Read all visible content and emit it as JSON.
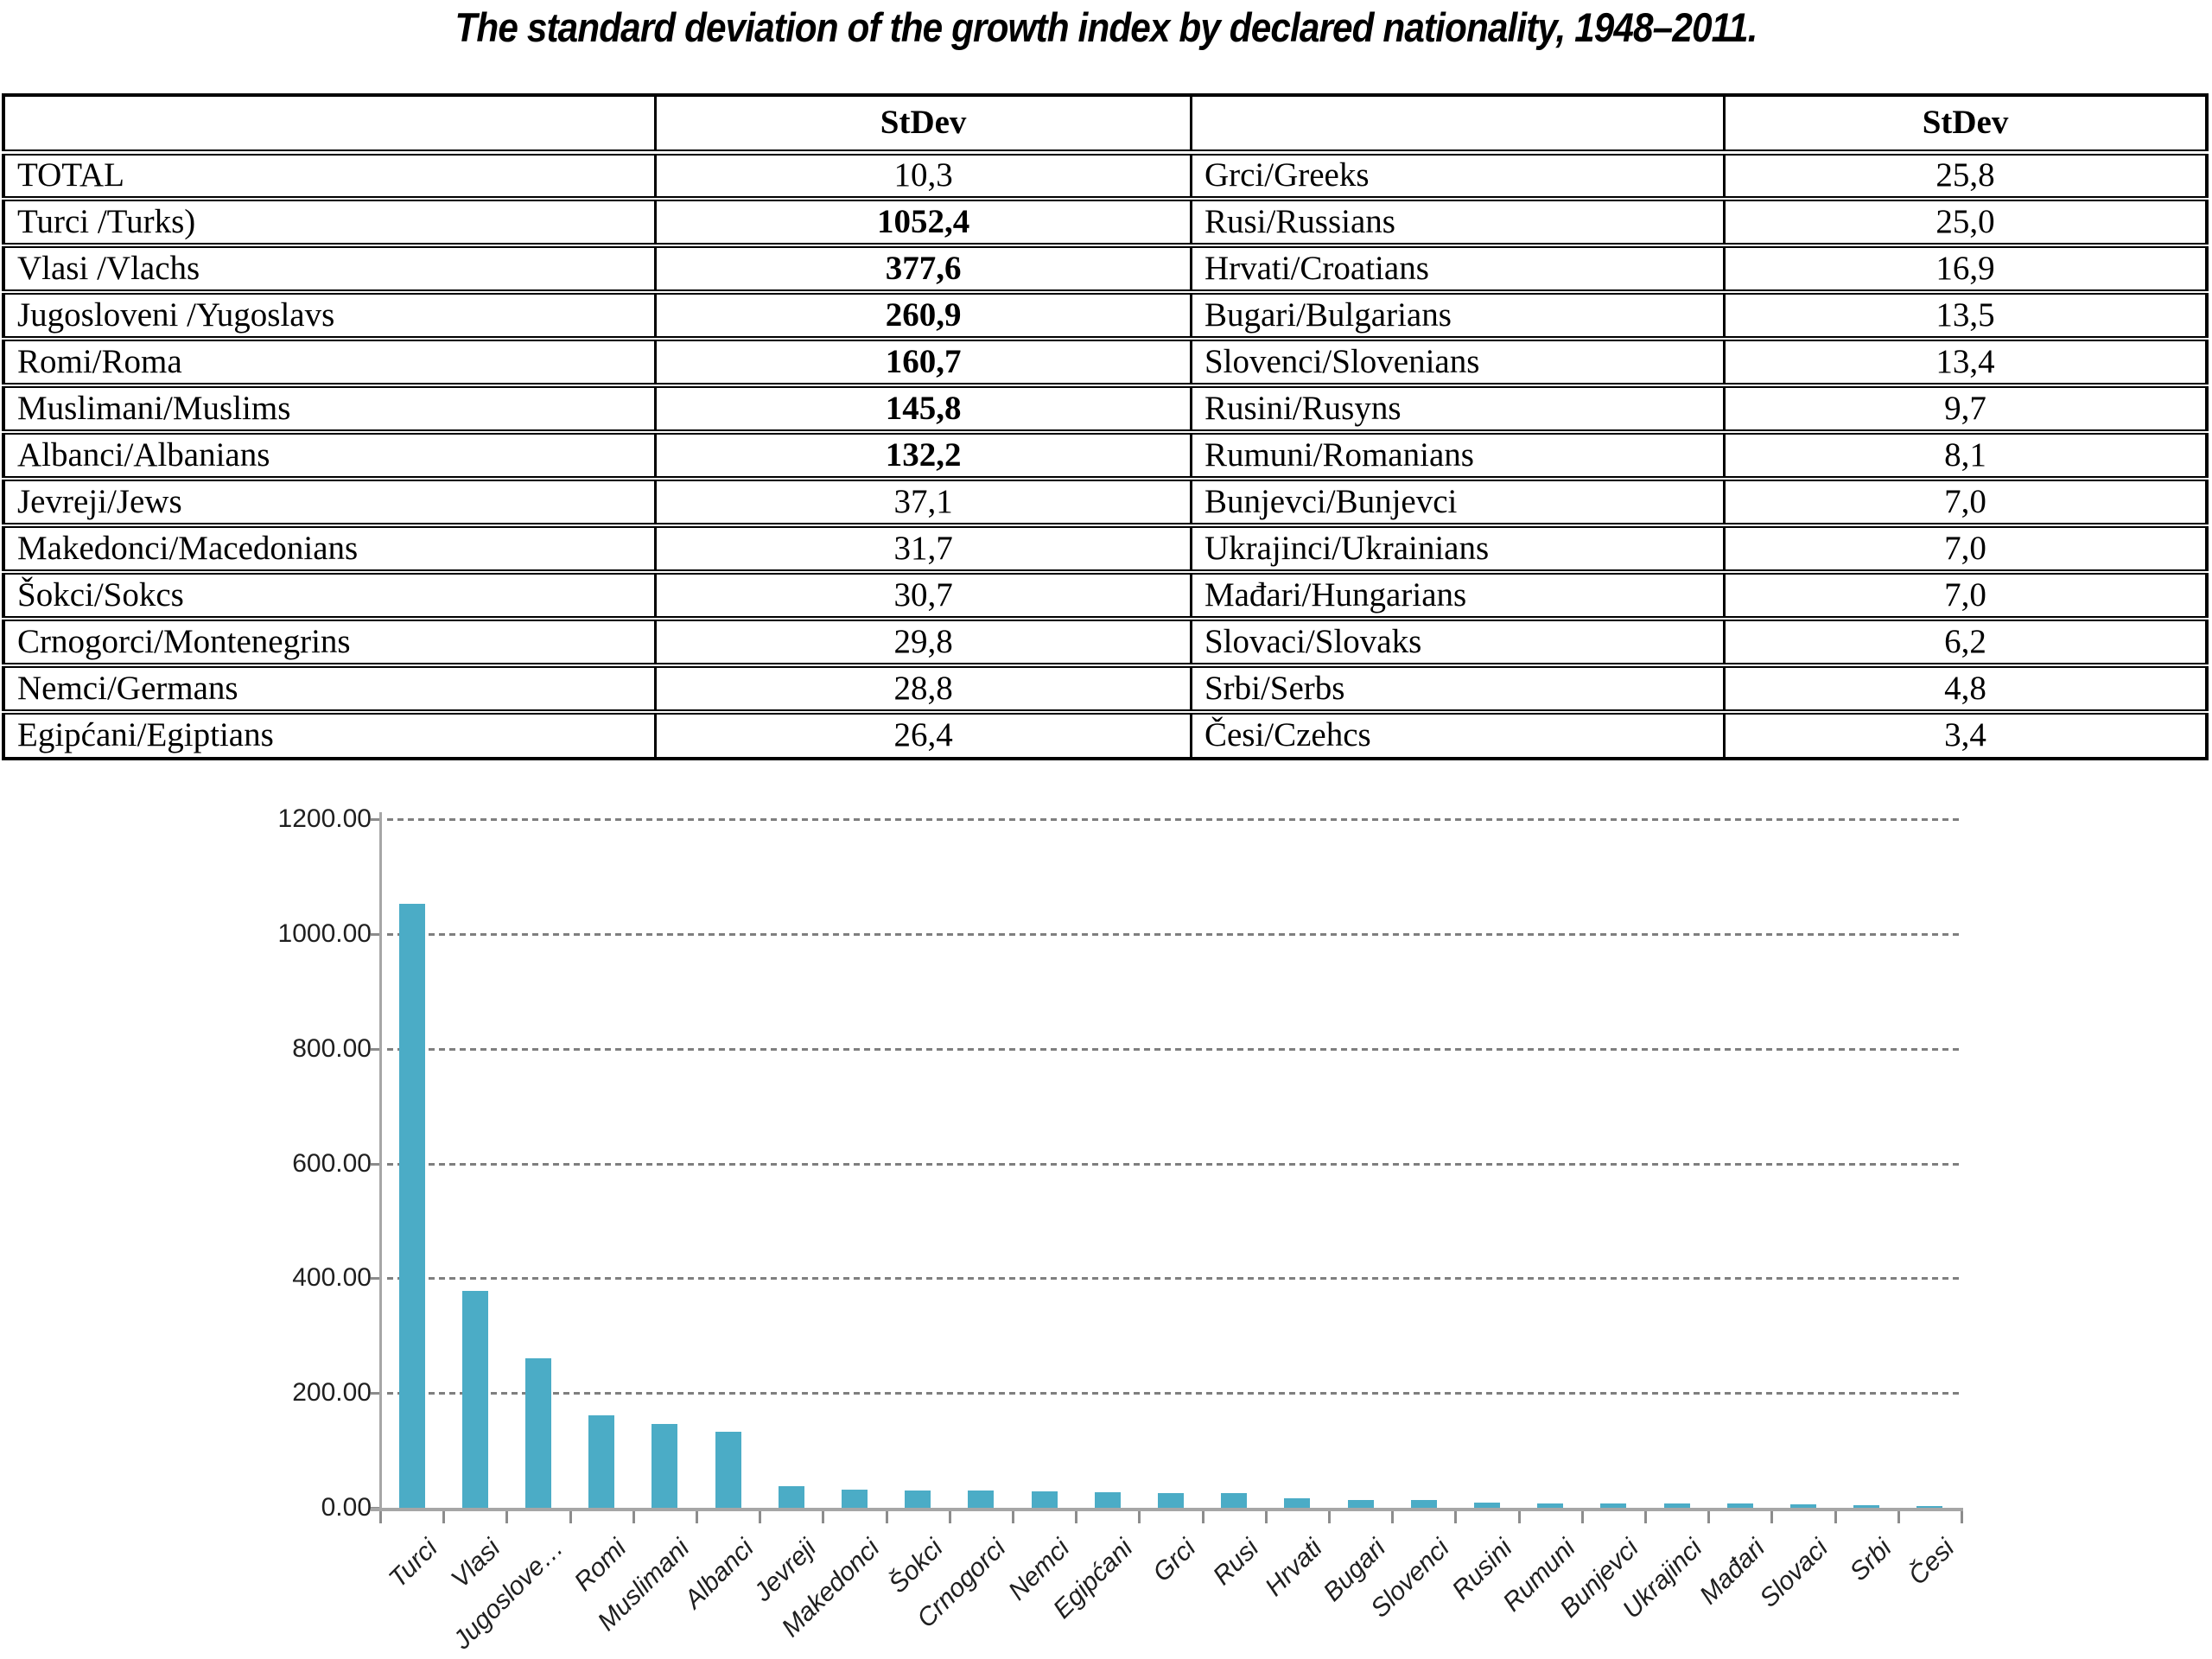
{
  "title": "The standard deviation of the growth index by declared nationality, 1948–2011.",
  "table": {
    "headers": [
      "",
      "StDev",
      "",
      "StDev"
    ],
    "rows": [
      {
        "left": {
          "name": "TOTAL",
          "stdev": "10,3",
          "bold": false
        },
        "right": {
          "name": "Grci/Greeks",
          "stdev": "25,8",
          "bold": false
        }
      },
      {
        "left": {
          "name": "Turci /Turks)",
          "stdev": "1052,4",
          "bold": true
        },
        "right": {
          "name": "Rusi/Russians",
          "stdev": "25,0",
          "bold": false
        }
      },
      {
        "left": {
          "name": "Vlasi /Vlachs",
          "stdev": "377,6",
          "bold": true
        },
        "right": {
          "name": "Hrvati/Croatians",
          "stdev": "16,9",
          "bold": false
        }
      },
      {
        "left": {
          "name": "Jugosloveni /Yugoslavs",
          "stdev": "260,9",
          "bold": true
        },
        "right": {
          "name": "Bugari/Bulgarians",
          "stdev": "13,5",
          "bold": false
        }
      },
      {
        "left": {
          "name": "Romi/Roma",
          "stdev": "160,7",
          "bold": true
        },
        "right": {
          "name": "Slovenci/Slovenians",
          "stdev": "13,4",
          "bold": false
        }
      },
      {
        "left": {
          "name": "Muslimani/Muslims",
          "stdev": "145,8",
          "bold": true
        },
        "right": {
          "name": "Rusini/Rusyns",
          "stdev": "9,7",
          "bold": false
        }
      },
      {
        "left": {
          "name": "Albanci/Albanians",
          "stdev": "132,2",
          "bold": true
        },
        "right": {
          "name": "Rumuni/Romanians",
          "stdev": "8,1",
          "bold": false
        }
      },
      {
        "left": {
          "name": "Jevreji/Jews",
          "stdev": "37,1",
          "bold": false
        },
        "right": {
          "name": "Bunjevci/Bunjevci",
          "stdev": "7,0",
          "bold": false
        }
      },
      {
        "left": {
          "name": "Makedonci/Macedonians",
          "stdev": "31,7",
          "bold": false
        },
        "right": {
          "name": "Ukrajinci/Ukrainians",
          "stdev": "7,0",
          "bold": false
        }
      },
      {
        "left": {
          "name": "Šokci/Sokcs",
          "stdev": "30,7",
          "bold": false
        },
        "right": {
          "name": "Mađari/Hungarians",
          "stdev": "7,0",
          "bold": false
        }
      },
      {
        "left": {
          "name": "Crnogorci/Montenegrins",
          "stdev": "29,8",
          "bold": false
        },
        "right": {
          "name": "Slovaci/Slovaks",
          "stdev": "6,2",
          "bold": false
        }
      },
      {
        "left": {
          "name": "Nemci/Germans",
          "stdev": "28,8",
          "bold": false
        },
        "right": {
          "name": "Srbi/Serbs",
          "stdev": "4,8",
          "bold": false
        }
      },
      {
        "left": {
          "name": "Egipćani/Egiptians",
          "stdev": "26,4",
          "bold": false
        },
        "right": {
          "name": "Česi/Czehcs",
          "stdev": "3,4",
          "bold": false
        }
      }
    ]
  },
  "chart_data": {
    "type": "bar",
    "title": "",
    "categories": [
      "Turci",
      "Vlasi",
      "Jugoslove…",
      "Romi",
      "Muslimani",
      "Albanci",
      "Jevreji",
      "Makedonci",
      "Šokci",
      "Crnogorci",
      "Nemci",
      "Egipćani",
      "Grci",
      "Rusi",
      "Hrvati",
      "Bugari",
      "Slovenci",
      "Rusini",
      "Rumuni",
      "Bunjevci",
      "Ukrajinci",
      "Mađari",
      "Slovaci",
      "Srbi",
      "Česi"
    ],
    "values": [
      1052.4,
      377.6,
      260.9,
      160.7,
      145.8,
      132.2,
      37.1,
      31.7,
      30.7,
      29.8,
      28.8,
      26.4,
      25.8,
      25.0,
      16.9,
      13.5,
      13.4,
      9.7,
      8.1,
      7.0,
      7.0,
      7.0,
      6.2,
      4.8,
      3.4
    ],
    "xlabel": "",
    "ylabel": "",
    "ylim": [
      0,
      1200
    ],
    "ytick_values": [
      0,
      200,
      400,
      600,
      800,
      1000,
      1200
    ],
    "ytick_labels": [
      "0.00",
      "200.00",
      "400.00",
      "600.00",
      "800.00",
      "1000.00",
      "1200.00"
    ],
    "grid": "horizontal-dashed",
    "legend": "none",
    "bar_color": "#4BACC6",
    "axis_color": "#A6A6A6",
    "tick_color": "#8C8C8C",
    "gridline_color": "#7F7F7F"
  }
}
